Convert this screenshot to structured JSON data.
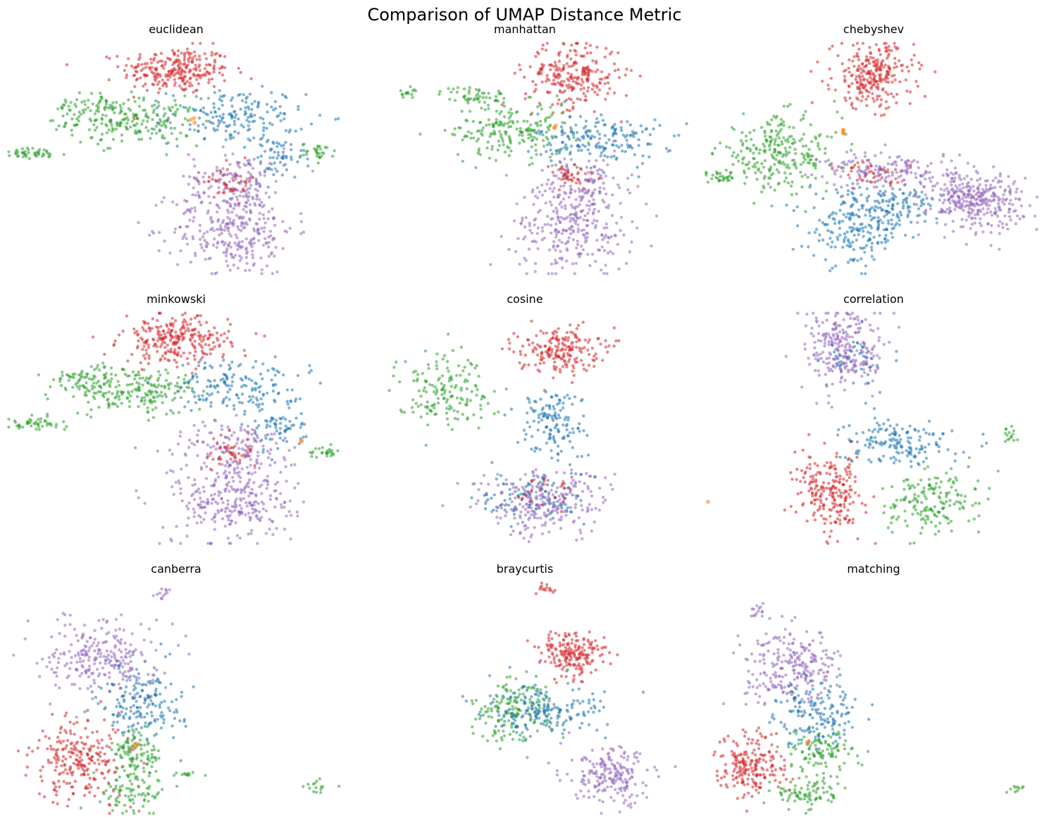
{
  "figure": {
    "title": "Comparison of UMAP Distance Metric"
  },
  "colors": {
    "blue": "#1f77b4",
    "orange": "#ff7f0e",
    "green": "#2ca02c",
    "red": "#d62728",
    "purple": "#9467bd"
  },
  "chart_data": [
    {
      "type": "scatter",
      "title": "euclidean",
      "axes_visible": false,
      "xlim": [
        0,
        100
      ],
      "ylim": [
        0,
        100
      ],
      "clusters": [
        {
          "color": "red",
          "cx": 50,
          "cy": 88,
          "sx": 8,
          "sy": 5,
          "n": 260
        },
        {
          "color": "green",
          "cx": 38,
          "cy": 66,
          "sx": 10,
          "sy": 5,
          "n": 200
        },
        {
          "color": "green",
          "cx": 8,
          "cy": 52,
          "sx": 5,
          "sy": 1.2,
          "n": 45
        },
        {
          "color": "green",
          "cx": 92,
          "cy": 53,
          "sx": 2.5,
          "sy": 1.8,
          "n": 30
        },
        {
          "color": "green",
          "cx": 24,
          "cy": 72,
          "sx": 5,
          "sy": 3,
          "n": 60
        },
        {
          "color": "blue",
          "cx": 68,
          "cy": 68,
          "sx": 10,
          "sy": 6,
          "n": 170
        },
        {
          "color": "blue",
          "cx": 80,
          "cy": 50,
          "sx": 4,
          "sy": 5,
          "n": 60
        },
        {
          "color": "purple",
          "cx": 67,
          "cy": 20,
          "sx": 9,
          "sy": 10,
          "n": 310
        },
        {
          "color": "purple",
          "cx": 68,
          "cy": 42,
          "sx": 7,
          "sy": 6,
          "n": 120
        },
        {
          "color": "red",
          "cx": 66,
          "cy": 40,
          "sx": 4,
          "sy": 4,
          "n": 40
        },
        {
          "color": "orange",
          "cx": 55,
          "cy": 67,
          "sx": 0.6,
          "sy": 0.6,
          "n": 3
        }
      ]
    },
    {
      "type": "scatter",
      "title": "manhattan",
      "axes_visible": false,
      "xlim": [
        0,
        100
      ],
      "ylim": [
        0,
        100
      ],
      "clusters": [
        {
          "color": "red",
          "cx": 64,
          "cy": 86,
          "sx": 7,
          "sy": 7,
          "n": 240
        },
        {
          "color": "green",
          "cx": 46,
          "cy": 62,
          "sx": 9,
          "sy": 6,
          "n": 200
        },
        {
          "color": "green",
          "cx": 35,
          "cy": 77,
          "sx": 5,
          "sy": 2,
          "n": 50
        },
        {
          "color": "green",
          "cx": 16,
          "cy": 78,
          "sx": 1.5,
          "sy": 1,
          "n": 15
        },
        {
          "color": "blue",
          "cx": 72,
          "cy": 58,
          "sx": 9,
          "sy": 6,
          "n": 180
        },
        {
          "color": "purple",
          "cx": 64,
          "cy": 20,
          "sx": 9,
          "sy": 9,
          "n": 260
        },
        {
          "color": "purple",
          "cx": 67,
          "cy": 40,
          "sx": 7,
          "sy": 6,
          "n": 110
        },
        {
          "color": "red",
          "cx": 63,
          "cy": 42,
          "sx": 4,
          "sy": 3,
          "n": 40
        },
        {
          "color": "orange",
          "cx": 59,
          "cy": 63,
          "sx": 0.6,
          "sy": 0.6,
          "n": 3
        }
      ]
    },
    {
      "type": "scatter",
      "title": "chebyshev",
      "axes_visible": false,
      "xlim": [
        0,
        100
      ],
      "ylim": [
        0,
        100
      ],
      "clusters": [
        {
          "color": "red",
          "cx": 50,
          "cy": 86,
          "sx": 6,
          "sy": 7,
          "n": 260
        },
        {
          "color": "green",
          "cx": 22,
          "cy": 52,
          "sx": 9,
          "sy": 8,
          "n": 260
        },
        {
          "color": "green",
          "cx": 5,
          "cy": 42,
          "sx": 2,
          "sy": 1.2,
          "n": 30
        },
        {
          "color": "blue",
          "cx": 45,
          "cy": 20,
          "sx": 7,
          "sy": 8,
          "n": 200
        },
        {
          "color": "blue",
          "cx": 57,
          "cy": 30,
          "sx": 6,
          "sy": 5,
          "n": 110
        },
        {
          "color": "purple",
          "cx": 80,
          "cy": 32,
          "sx": 7,
          "sy": 6,
          "n": 330
        },
        {
          "color": "purple",
          "cx": 55,
          "cy": 45,
          "sx": 10,
          "sy": 4,
          "n": 150
        },
        {
          "color": "red",
          "cx": 50,
          "cy": 43,
          "sx": 6,
          "sy": 3,
          "n": 40
        },
        {
          "color": "orange",
          "cx": 41,
          "cy": 61,
          "sx": 0.6,
          "sy": 0.6,
          "n": 4
        }
      ]
    },
    {
      "type": "scatter",
      "title": "minkowski",
      "axes_visible": false,
      "xlim": [
        0,
        100
      ],
      "ylim": [
        0,
        100
      ],
      "clusters": [
        {
          "color": "red",
          "cx": 50,
          "cy": 88,
          "sx": 8,
          "sy": 5,
          "n": 260
        },
        {
          "color": "green",
          "cx": 38,
          "cy": 66,
          "sx": 10,
          "sy": 5,
          "n": 200
        },
        {
          "color": "green",
          "cx": 8,
          "cy": 52,
          "sx": 5,
          "sy": 1.2,
          "n": 45
        },
        {
          "color": "green",
          "cx": 94,
          "cy": 40,
          "sx": 2.5,
          "sy": 1.2,
          "n": 25
        },
        {
          "color": "green",
          "cx": 24,
          "cy": 72,
          "sx": 5,
          "sy": 3,
          "n": 60
        },
        {
          "color": "blue",
          "cx": 68,
          "cy": 68,
          "sx": 10,
          "sy": 6,
          "n": 170
        },
        {
          "color": "blue",
          "cx": 80,
          "cy": 50,
          "sx": 4,
          "sy": 5,
          "n": 60
        },
        {
          "color": "purple",
          "cx": 67,
          "cy": 20,
          "sx": 9,
          "sy": 10,
          "n": 310
        },
        {
          "color": "purple",
          "cx": 68,
          "cy": 42,
          "sx": 7,
          "sy": 6,
          "n": 120
        },
        {
          "color": "red",
          "cx": 66,
          "cy": 40,
          "sx": 4,
          "sy": 4,
          "n": 40
        },
        {
          "color": "orange",
          "cx": 87,
          "cy": 44,
          "sx": 0.5,
          "sy": 0.5,
          "n": 2
        }
      ]
    },
    {
      "type": "scatter",
      "title": "cosine",
      "axes_visible": false,
      "xlim": [
        0,
        100
      ],
      "ylim": [
        0,
        100
      ],
      "clusters": [
        {
          "color": "red",
          "cx": 60,
          "cy": 84,
          "sx": 6,
          "sy": 5,
          "n": 200
        },
        {
          "color": "green",
          "cx": 26,
          "cy": 67,
          "sx": 7,
          "sy": 8,
          "n": 160
        },
        {
          "color": "blue",
          "cx": 58,
          "cy": 52,
          "sx": 5,
          "sy": 8,
          "n": 140
        },
        {
          "color": "purple",
          "cx": 55,
          "cy": 18,
          "sx": 10,
          "sy": 7,
          "n": 250
        },
        {
          "color": "blue",
          "cx": 52,
          "cy": 20,
          "sx": 8,
          "sy": 6,
          "n": 90
        },
        {
          "color": "red",
          "cx": 58,
          "cy": 23,
          "sx": 5,
          "sy": 4,
          "n": 25
        }
      ]
    },
    {
      "type": "scatter",
      "title": "correlation",
      "axes_visible": false,
      "xlim": [
        0,
        100
      ],
      "ylim": [
        0,
        100
      ],
      "clusters": [
        {
          "color": "purple",
          "cx": 42,
          "cy": 84,
          "sx": 6,
          "sy": 9,
          "n": 260
        },
        {
          "color": "blue",
          "cx": 44,
          "cy": 80,
          "sx": 4,
          "sy": 6,
          "n": 40
        },
        {
          "color": "blue",
          "cx": 57,
          "cy": 44,
          "sx": 8,
          "sy": 5,
          "n": 160
        },
        {
          "color": "red",
          "cx": 37,
          "cy": 22,
          "sx": 5,
          "sy": 8,
          "n": 220
        },
        {
          "color": "green",
          "cx": 67,
          "cy": 18,
          "sx": 7,
          "sy": 7,
          "n": 170
        },
        {
          "color": "green",
          "cx": 91,
          "cy": 47,
          "sx": 1.2,
          "sy": 2,
          "n": 15
        },
        {
          "color": "orange",
          "cx": 1,
          "cy": 18,
          "sx": 0.3,
          "sy": 0.3,
          "n": 1
        }
      ]
    },
    {
      "type": "scatter",
      "title": "canberra",
      "axes_visible": false,
      "xlim": [
        0,
        100
      ],
      "ylim": [
        0,
        100
      ],
      "clusters": [
        {
          "color": "purple",
          "cx": 28,
          "cy": 68,
          "sx": 8,
          "sy": 8,
          "n": 250
        },
        {
          "color": "blue",
          "cx": 40,
          "cy": 48,
          "sx": 6,
          "sy": 8,
          "n": 170
        },
        {
          "color": "red",
          "cx": 22,
          "cy": 24,
          "sx": 7,
          "sy": 9,
          "n": 240
        },
        {
          "color": "green",
          "cx": 38,
          "cy": 26,
          "sx": 4,
          "sy": 5,
          "n": 110
        },
        {
          "color": "green",
          "cx": 38,
          "cy": 9,
          "sx": 5,
          "sy": 4,
          "n": 80
        },
        {
          "color": "green",
          "cx": 92,
          "cy": 12,
          "sx": 2,
          "sy": 1.5,
          "n": 15
        },
        {
          "color": "green",
          "cx": 53,
          "cy": 17,
          "sx": 2,
          "sy": 0.6,
          "n": 12
        },
        {
          "color": "purple",
          "cx": 46,
          "cy": 94,
          "sx": 1,
          "sy": 2,
          "n": 12
        },
        {
          "color": "orange",
          "cx": 38,
          "cy": 30,
          "sx": 0.6,
          "sy": 0.6,
          "n": 3
        }
      ]
    },
    {
      "type": "scatter",
      "title": "braycurtis",
      "axes_visible": false,
      "xlim": [
        0,
        100
      ],
      "ylim": [
        0,
        100
      ],
      "clusters": [
        {
          "color": "red",
          "cx": 64,
          "cy": 69,
          "sx": 5,
          "sy": 5,
          "n": 190
        },
        {
          "color": "green",
          "cx": 46,
          "cy": 45,
          "sx": 6,
          "sy": 7,
          "n": 170
        },
        {
          "color": "blue",
          "cx": 56,
          "cy": 44,
          "sx": 9,
          "sy": 5,
          "n": 170
        },
        {
          "color": "purple",
          "cx": 76,
          "cy": 16,
          "sx": 6,
          "sy": 6,
          "n": 200
        },
        {
          "color": "red",
          "cx": 57,
          "cy": 97,
          "sx": 2,
          "sy": 1.2,
          "n": 15
        }
      ]
    },
    {
      "type": "scatter",
      "title": "matching",
      "axes_visible": false,
      "xlim": [
        0,
        100
      ],
      "ylim": [
        0,
        100
      ],
      "clusters": [
        {
          "color": "purple",
          "cx": 26,
          "cy": 63,
          "sx": 7,
          "sy": 8,
          "n": 240
        },
        {
          "color": "blue",
          "cx": 33,
          "cy": 44,
          "sx": 6,
          "sy": 7,
          "n": 160
        },
        {
          "color": "red",
          "cx": 14,
          "cy": 21,
          "sx": 5,
          "sy": 7,
          "n": 200
        },
        {
          "color": "green",
          "cx": 34,
          "cy": 26,
          "sx": 5,
          "sy": 5,
          "n": 110
        },
        {
          "color": "green",
          "cx": 30,
          "cy": 9,
          "sx": 5,
          "sy": 3,
          "n": 80
        },
        {
          "color": "green",
          "cx": 92,
          "cy": 11,
          "sx": 1.2,
          "sy": 1.5,
          "n": 10
        },
        {
          "color": "purple",
          "cx": 16,
          "cy": 88,
          "sx": 2,
          "sy": 2,
          "n": 15
        },
        {
          "color": "orange",
          "cx": 31,
          "cy": 31,
          "sx": 0.6,
          "sy": 0.6,
          "n": 3
        }
      ]
    }
  ]
}
